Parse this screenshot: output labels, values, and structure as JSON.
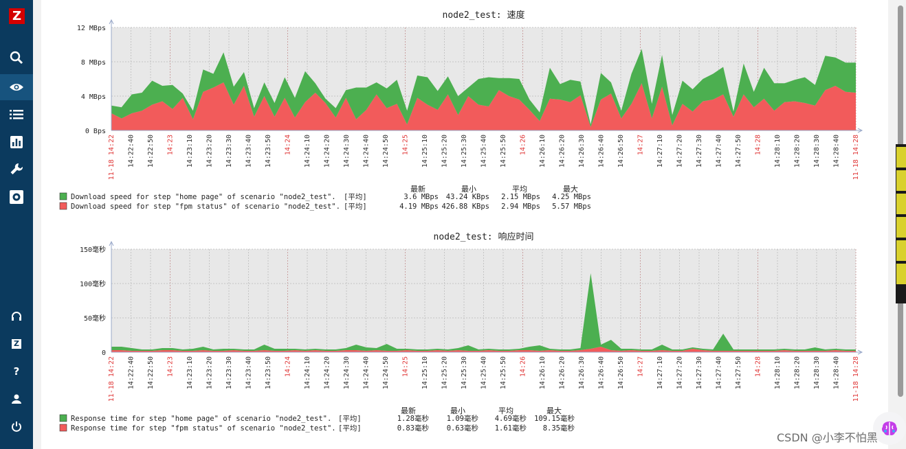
{
  "sidebar": {
    "logo": "Z",
    "items": [
      {
        "icon": "search-icon"
      },
      {
        "icon": "eye-icon",
        "active": true
      },
      {
        "icon": "list-icon"
      },
      {
        "icon": "bar-chart-icon"
      },
      {
        "icon": "wrench-icon"
      },
      {
        "icon": "gear-icon"
      }
    ],
    "bottom_items": [
      {
        "icon": "headset-icon"
      },
      {
        "icon": "zabbix-share-icon",
        "label": "Z"
      },
      {
        "icon": "help-icon",
        "label": "?"
      },
      {
        "icon": "user-icon"
      },
      {
        "icon": "power-icon"
      }
    ]
  },
  "colors": {
    "green": "#4caf50",
    "red": "#f25b5b",
    "plot_bg": "#e8e8e8",
    "sidebar": "#0b3a5e"
  },
  "watermark": "CSDN @小李不怕黑",
  "chart_data": [
    {
      "type": "area",
      "title": "node2_test: 速度",
      "x_labels": [
        {
          "t": "11-18 14:22",
          "red": true
        },
        {
          "t": "14:22:40"
        },
        {
          "t": "14:22:50"
        },
        {
          "t": "14:23",
          "red": true
        },
        {
          "t": "14:23:10"
        },
        {
          "t": "14:23:20"
        },
        {
          "t": "14:23:30"
        },
        {
          "t": "14:23:40"
        },
        {
          "t": "14:23:50"
        },
        {
          "t": "14:24",
          "red": true
        },
        {
          "t": "14:24:10"
        },
        {
          "t": "14:24:20"
        },
        {
          "t": "14:24:30"
        },
        {
          "t": "14:24:40"
        },
        {
          "t": "14:24:50"
        },
        {
          "t": "14:25",
          "red": true
        },
        {
          "t": "14:25:10"
        },
        {
          "t": "14:25:20"
        },
        {
          "t": "14:25:30"
        },
        {
          "t": "14:25:40"
        },
        {
          "t": "14:25:50"
        },
        {
          "t": "14:26",
          "red": true
        },
        {
          "t": "14:26:10"
        },
        {
          "t": "14:26:20"
        },
        {
          "t": "14:26:30"
        },
        {
          "t": "14:26:40"
        },
        {
          "t": "14:26:50"
        },
        {
          "t": "14:27",
          "red": true
        },
        {
          "t": "14:27:10"
        },
        {
          "t": "14:27:20"
        },
        {
          "t": "14:27:30"
        },
        {
          "t": "14:27:40"
        },
        {
          "t": "14:27:50"
        },
        {
          "t": "14:28",
          "red": true
        },
        {
          "t": "14:28:10"
        },
        {
          "t": "14:28:20"
        },
        {
          "t": "14:28:30"
        },
        {
          "t": "14:28:40"
        },
        {
          "t": "11-18 14:28",
          "red": true
        }
      ],
      "y_ticks": [
        "12 MBps",
        "8 MBps",
        "4 MBps",
        "0 Bps"
      ],
      "y_tick_values": [
        12,
        8,
        4,
        0
      ],
      "ylim": [
        0,
        12
      ],
      "stacked": true,
      "series": [
        {
          "name": "Download speed for step \"fpm status\" of scenario \"node2_test\".",
          "color": "#f25b5b",
          "values": [
            2,
            1.4,
            2,
            2.3,
            3,
            3.4,
            2.5,
            3.8,
            1.3,
            4.5,
            5,
            5.6,
            3,
            5.2,
            1.6,
            4,
            1.6,
            3.8,
            1.5,
            3.3,
            4.4,
            3.2,
            1.5,
            3.8,
            1.3,
            2.4,
            4.2,
            2.6,
            3.1,
            0.7,
            3.8,
            3,
            2.4,
            4.2,
            1.8,
            4,
            3,
            2.8,
            4.7,
            4,
            3.6,
            2.4,
            1.1,
            3.7,
            3.6,
            3.3,
            4.1,
            0.4,
            3.6,
            4.3,
            1.4,
            3.1,
            5.5,
            1.4,
            5.1,
            0.6,
            3.1,
            2.2,
            3.4,
            3.6,
            4.2,
            1.6,
            4.2,
            2.7,
            3.7,
            2.3,
            3.3,
            3.4,
            3.2,
            2.9,
            4.7,
            5.2,
            4.5,
            4.4
          ]
        },
        {
          "name": "Download speed for step \"home page\" of scenario \"node2_test\".",
          "color": "#4caf50",
          "values": [
            0.9,
            1.3,
            2.2,
            2.1,
            2.8,
            1.8,
            2.8,
            0.5,
            1,
            2.6,
            1.6,
            3.5,
            2.1,
            1.6,
            1,
            1.6,
            1.6,
            2.4,
            2.3,
            3.6,
            1.1,
            0.5,
            1.1,
            0.9,
            3.7,
            2.6,
            1.4,
            2.3,
            2.8,
            1.6,
            2.6,
            3.2,
            2.2,
            2.1,
            2.2,
            1,
            3,
            3.4,
            1.4,
            2.1,
            2.4,
            1.2,
            1,
            3.6,
            1.8,
            2.6,
            1.6,
            0.3,
            3.1,
            1.3,
            0.9,
            3.5,
            4,
            1.7,
            3.7,
            1.2,
            2.7,
            2.6,
            2.6,
            3,
            3.2,
            0.6,
            3.6,
            1.8,
            3.6,
            3.2,
            2.2,
            2.5,
            3,
            2.4,
            4,
            3.3,
            3.4,
            3.5
          ]
        }
      ],
      "legend": {
        "header": [
          "最新",
          "最小",
          "平均",
          "最大"
        ],
        "rows": [
          {
            "color": "#4caf50",
            "label": "Download speed for step \"home page\" of scenario \"node2_test\".",
            "func": "[平均]",
            "latest": "3.6 MBps",
            "min": "43.24 KBps",
            "avg": "2.15 MBps",
            "max": "4.25 MBps"
          },
          {
            "color": "#f25b5b",
            "label": "Download speed for step \"fpm status\" of scenario \"node2_test\".",
            "func": "[平均]",
            "latest": "4.19 MBps",
            "min": "426.88 KBps",
            "avg": "2.94 MBps",
            "max": "5.57 MBps"
          }
        ]
      },
      "grid": true
    },
    {
      "type": "area",
      "title": "node2_test: 响应时间",
      "x_labels": [
        {
          "t": "11-18 14:22",
          "red": true
        },
        {
          "t": "14:22:40"
        },
        {
          "t": "14:22:50"
        },
        {
          "t": "14:23",
          "red": true
        },
        {
          "t": "14:23:10"
        },
        {
          "t": "14:23:20"
        },
        {
          "t": "14:23:30"
        },
        {
          "t": "14:23:40"
        },
        {
          "t": "14:23:50"
        },
        {
          "t": "14:24",
          "red": true
        },
        {
          "t": "14:24:10"
        },
        {
          "t": "14:24:20"
        },
        {
          "t": "14:24:30"
        },
        {
          "t": "14:24:40"
        },
        {
          "t": "14:24:50"
        },
        {
          "t": "14:25",
          "red": true
        },
        {
          "t": "14:25:10"
        },
        {
          "t": "14:25:20"
        },
        {
          "t": "14:25:30"
        },
        {
          "t": "14:25:40"
        },
        {
          "t": "14:25:50"
        },
        {
          "t": "14:26",
          "red": true
        },
        {
          "t": "14:26:10"
        },
        {
          "t": "14:26:20"
        },
        {
          "t": "14:26:30"
        },
        {
          "t": "14:26:40"
        },
        {
          "t": "14:26:50"
        },
        {
          "t": "14:27",
          "red": true
        },
        {
          "t": "14:27:10"
        },
        {
          "t": "14:27:20"
        },
        {
          "t": "14:27:30"
        },
        {
          "t": "14:27:40"
        },
        {
          "t": "14:27:50"
        },
        {
          "t": "14:28",
          "red": true
        },
        {
          "t": "14:28:10"
        },
        {
          "t": "14:28:20"
        },
        {
          "t": "14:28:30"
        },
        {
          "t": "14:28:40"
        },
        {
          "t": "11-18 14:28",
          "red": true
        }
      ],
      "y_ticks": [
        "150毫秒",
        "100毫秒",
        "50毫秒",
        "0"
      ],
      "y_tick_values": [
        150,
        100,
        50,
        0
      ],
      "ylim": [
        0,
        150
      ],
      "stacked": true,
      "series": [
        {
          "name": "Response time for step \"fpm status\" of scenario \"node2_test\".",
          "color": "#f25b5b",
          "values": [
            3,
            3,
            2,
            2,
            2,
            3,
            3,
            2,
            2,
            3,
            2,
            2,
            3,
            2,
            2,
            3,
            2,
            2,
            3,
            2,
            3,
            2,
            2,
            3,
            3,
            2,
            3,
            2,
            2,
            3,
            2,
            2,
            3,
            2,
            3,
            2,
            2,
            3,
            2,
            2,
            3,
            3,
            2,
            3,
            2,
            2,
            3,
            5,
            8,
            3,
            2,
            3,
            2,
            2,
            3,
            2,
            2,
            5,
            3,
            2,
            2,
            2,
            2,
            2,
            2,
            2,
            3,
            2,
            2,
            2,
            2,
            3,
            2,
            2
          ]
        },
        {
          "name": "Response time for step \"home page\" of scenario \"node2_test\".",
          "color": "#4caf50",
          "values": [
            5,
            5,
            4,
            2,
            2,
            3,
            3,
            2,
            3,
            5,
            2,
            3,
            2,
            2,
            2,
            8,
            3,
            3,
            2,
            2,
            2,
            2,
            2,
            3,
            8,
            5,
            3,
            10,
            3,
            2,
            2,
            2,
            2,
            2,
            3,
            8,
            2,
            2,
            2,
            2,
            2,
            5,
            8,
            2,
            2,
            2,
            3,
            110,
            3,
            15,
            3,
            2,
            2,
            2,
            8,
            2,
            2,
            2,
            2,
            2,
            25,
            2,
            2,
            2,
            2,
            2,
            2,
            2,
            2,
            5,
            2,
            2,
            2,
            2
          ]
        }
      ],
      "legend": {
        "header": [
          "最新",
          "最小",
          "平均",
          "最大"
        ],
        "rows": [
          {
            "color": "#4caf50",
            "label": "Response time for step \"home page\" of scenario \"node2_test\".",
            "func": "[平均]",
            "latest": "1.28毫秒",
            "min": "1.09毫秒",
            "avg": "4.69毫秒",
            "max": "109.15毫秒"
          },
          {
            "color": "#f25b5b",
            "label": "Response time for step \"fpm status\" of scenario \"node2_test\".",
            "func": "[平均]",
            "latest": "0.83毫秒",
            "min": "0.63毫秒",
            "avg": "1.61毫秒",
            "max": "8.35毫秒"
          }
        ]
      },
      "grid": true
    }
  ]
}
